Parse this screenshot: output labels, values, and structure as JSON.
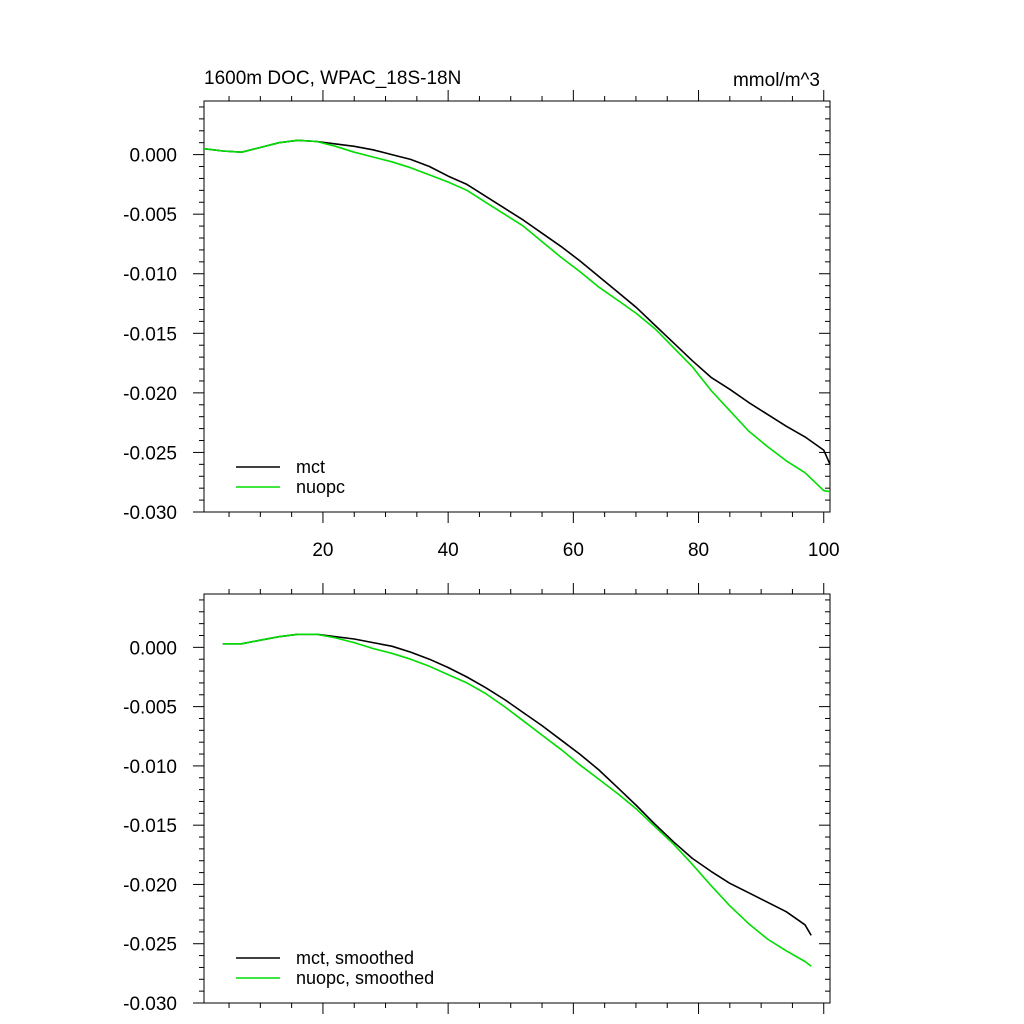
{
  "figure": {
    "title": "1600m DOC, WPAC_18S-18N",
    "units": "mmol/m^3"
  },
  "chart_data": [
    {
      "type": "line",
      "panel": "top",
      "title": "1600m DOC, WPAC_18S-18N",
      "units": "mmol/m^3",
      "xlabel": "",
      "ylabel": "",
      "xlim": [
        1,
        101
      ],
      "ylim": [
        -0.03,
        0.0045
      ],
      "x_ticks": [
        20,
        40,
        60,
        80,
        100
      ],
      "x_tick_labels": [
        "20",
        "40",
        "60",
        "80",
        "100"
      ],
      "y_ticks": [
        0.0,
        -0.005,
        -0.01,
        -0.015,
        -0.02,
        -0.025,
        -0.03
      ],
      "y_tick_labels": [
        "0.000",
        "-0.005",
        "-0.010",
        "-0.015",
        "-0.020",
        "-0.025",
        "-0.030"
      ],
      "grid": false,
      "legend_position": "bottom-left",
      "series": [
        {
          "name": "mct",
          "color": "#000000",
          "x": [
            1,
            4,
            7,
            10,
            13,
            16,
            19,
            22,
            25,
            28,
            31,
            34,
            37,
            40,
            43,
            46,
            49,
            52,
            55,
            58,
            61,
            64,
            67,
            70,
            73,
            76,
            79,
            82,
            85,
            88,
            91,
            94,
            97,
            100,
            101
          ],
          "y": [
            0.0005,
            0.0003,
            0.0002,
            0.0006,
            0.001,
            0.0012,
            0.0011,
            0.0009,
            0.0007,
            0.0004,
            0.0,
            -0.0004,
            -0.001,
            -0.0018,
            -0.0025,
            -0.0035,
            -0.0045,
            -0.0055,
            -0.0066,
            -0.0077,
            -0.0089,
            -0.0102,
            -0.0115,
            -0.0128,
            -0.0143,
            -0.0158,
            -0.0173,
            -0.0187,
            -0.0197,
            -0.0208,
            -0.0218,
            -0.0228,
            -0.0237,
            -0.0248,
            -0.026
          ]
        },
        {
          "name": "nuopc",
          "color": "#00dd00",
          "x": [
            1,
            4,
            7,
            10,
            13,
            16,
            19,
            22,
            25,
            28,
            31,
            34,
            37,
            40,
            43,
            46,
            49,
            52,
            55,
            58,
            61,
            64,
            67,
            70,
            73,
            76,
            79,
            82,
            85,
            88,
            91,
            94,
            97,
            100,
            101
          ],
          "y": [
            0.0005,
            0.0003,
            0.0002,
            0.0006,
            0.001,
            0.0012,
            0.0011,
            0.0007,
            0.0002,
            -0.0002,
            -0.0006,
            -0.0011,
            -0.0017,
            -0.0023,
            -0.003,
            -0.004,
            -0.005,
            -0.006,
            -0.0073,
            -0.0086,
            -0.0098,
            -0.0111,
            -0.0122,
            -0.0133,
            -0.0146,
            -0.0162,
            -0.0178,
            -0.0198,
            -0.0215,
            -0.0232,
            -0.0245,
            -0.0257,
            -0.0267,
            -0.0282,
            -0.0283
          ]
        }
      ]
    },
    {
      "type": "line",
      "panel": "bottom",
      "title": "",
      "xlabel": "",
      "ylabel": "",
      "xlim": [
        1,
        101
      ],
      "ylim": [
        -0.03,
        0.0045
      ],
      "x_ticks": [
        20,
        40,
        60,
        80,
        100
      ],
      "y_ticks": [
        0.0,
        -0.005,
        -0.01,
        -0.015,
        -0.02,
        -0.025,
        -0.03
      ],
      "y_tick_labels": [
        "0.000",
        "-0.005",
        "-0.010",
        "-0.015",
        "-0.020",
        "-0.025",
        "-0.030"
      ],
      "grid": false,
      "legend_position": "bottom-left",
      "series": [
        {
          "name": "mct, smoothed",
          "color": "#000000",
          "x": [
            4,
            7,
            10,
            13,
            16,
            19,
            22,
            25,
            28,
            31,
            34,
            37,
            40,
            43,
            46,
            49,
            52,
            55,
            58,
            61,
            64,
            67,
            70,
            73,
            76,
            79,
            82,
            85,
            88,
            91,
            94,
            97,
            98
          ],
          "y": [
            0.0003,
            0.0003,
            0.0006,
            0.0009,
            0.0011,
            0.0011,
            0.0009,
            0.0007,
            0.0004,
            0.0001,
            -0.0004,
            -0.001,
            -0.0017,
            -0.0025,
            -0.0034,
            -0.0044,
            -0.0055,
            -0.0066,
            -0.0078,
            -0.009,
            -0.0103,
            -0.0118,
            -0.0133,
            -0.0149,
            -0.0164,
            -0.0178,
            -0.0189,
            -0.0199,
            -0.0207,
            -0.0215,
            -0.0223,
            -0.0234,
            -0.0243
          ]
        },
        {
          "name": "nuopc, smoothed",
          "color": "#00dd00",
          "x": [
            4,
            7,
            10,
            13,
            16,
            19,
            22,
            25,
            28,
            31,
            34,
            37,
            40,
            43,
            46,
            49,
            52,
            55,
            58,
            61,
            64,
            67,
            70,
            73,
            76,
            79,
            82,
            85,
            88,
            91,
            94,
            97,
            98
          ],
          "y": [
            0.0003,
            0.0003,
            0.0006,
            0.0009,
            0.0011,
            0.0011,
            0.0008,
            0.0004,
            -0.0001,
            -0.0005,
            -0.001,
            -0.0016,
            -0.0023,
            -0.003,
            -0.0039,
            -0.005,
            -0.0062,
            -0.0074,
            -0.0086,
            -0.0099,
            -0.0111,
            -0.0123,
            -0.0136,
            -0.0151,
            -0.0166,
            -0.0183,
            -0.0201,
            -0.0218,
            -0.0233,
            -0.0246,
            -0.0256,
            -0.0265,
            -0.0269
          ]
        }
      ]
    }
  ]
}
